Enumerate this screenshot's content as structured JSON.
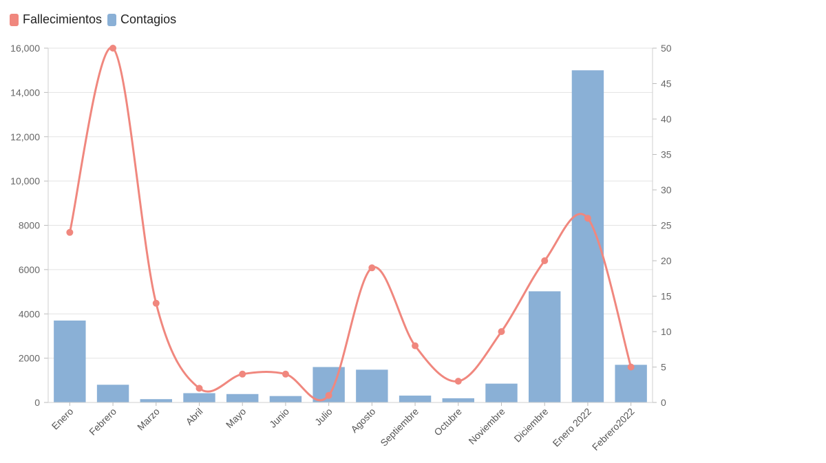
{
  "legend": {
    "deaths_label": "Fallecimientos",
    "cases_label": "Contagios"
  },
  "colors": {
    "deaths": "#f0877e",
    "cases": "#8ab0d6",
    "grid": "#e3e3e3"
  },
  "chart_data": {
    "type": "bar",
    "categories": [
      "Enero",
      "Febrero",
      "Marzo",
      "Abril",
      "Mayo",
      "Junio",
      "Julio",
      "Agosto",
      "Septiembre",
      "Octubre",
      "Noviembre",
      "Diciembre",
      "Enero 2022",
      "Febrero2022"
    ],
    "series": [
      {
        "name": "Contagios",
        "type": "bar",
        "axis": "left",
        "values": [
          3700,
          800,
          150,
          420,
          380,
          290,
          1600,
          1480,
          310,
          190,
          850,
          5020,
          15000,
          1700
        ]
      },
      {
        "name": "Fallecimientos",
        "type": "line",
        "axis": "right",
        "values": [
          24,
          50,
          14,
          2,
          4,
          4,
          1,
          19,
          8,
          3,
          10,
          20,
          26,
          5
        ]
      }
    ],
    "y_left": {
      "range": [
        0,
        16000
      ],
      "ticks": [
        0,
        2000,
        4000,
        6000,
        8000,
        10000,
        12000,
        14000,
        16000
      ],
      "tick_labels": [
        "0",
        "2000",
        "4000",
        "6000",
        "8000",
        "10,000",
        "12,000",
        "14,000",
        "16,000"
      ]
    },
    "y_right": {
      "range": [
        0,
        50
      ],
      "ticks": [
        0,
        5,
        10,
        15,
        20,
        25,
        30,
        35,
        40,
        45,
        50
      ],
      "tick_labels": [
        "0",
        "5",
        "10",
        "15",
        "20",
        "25",
        "30",
        "35",
        "40",
        "45",
        "50"
      ]
    },
    "grid": true,
    "legend_position": "top-left"
  }
}
